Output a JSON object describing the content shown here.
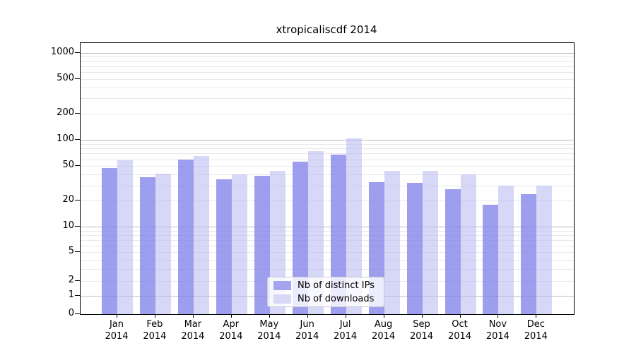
{
  "title": "xtropicaliscdf 2014",
  "colors": {
    "series_ips": "#a3a3f0",
    "series_downloads": "#d9d9f7",
    "series_ips_rgba": "rgba(131,131,235,0.78)",
    "series_downloads_rgba": "rgba(183,183,242,0.55)",
    "major_gridline": "#bcbcbc",
    "minor_gridline": "#e8e8ec",
    "axis": "#000000",
    "background": "#ffffff"
  },
  "chart_data": {
    "type": "bar",
    "title": "xtropicaliscdf 2014",
    "categories": [
      "Jan",
      "Feb",
      "Mar",
      "Apr",
      "May",
      "Jun",
      "Jul",
      "Aug",
      "Sep",
      "Oct",
      "Nov",
      "Dec"
    ],
    "category_year": "2014",
    "series": [
      {
        "name": "Nb of distinct IPs",
        "values": [
          48,
          37,
          60,
          35,
          39,
          56,
          68,
          33,
          32,
          27,
          18,
          24
        ]
      },
      {
        "name": "Nb of downloads",
        "values": [
          58,
          41,
          65,
          40,
          44,
          75,
          105,
          44,
          44,
          40,
          30,
          30
        ]
      }
    ],
    "xlabel": "",
    "ylabel": "",
    "y_scale": "symlog",
    "y_ticks": [
      0,
      1,
      2,
      5,
      10,
      20,
      50,
      100,
      200,
      500,
      1000
    ],
    "y_major_gridlines": [
      1,
      10,
      100,
      1000
    ],
    "y_minor_gridlines": [
      2,
      3,
      4,
      5,
      6,
      7,
      8,
      9,
      20,
      30,
      40,
      50,
      60,
      70,
      80,
      90,
      200,
      300,
      400,
      500,
      600,
      700,
      800,
      900
    ],
    "ylim": [
      0,
      1300
    ],
    "grid": true,
    "legend_position": "lower center"
  }
}
